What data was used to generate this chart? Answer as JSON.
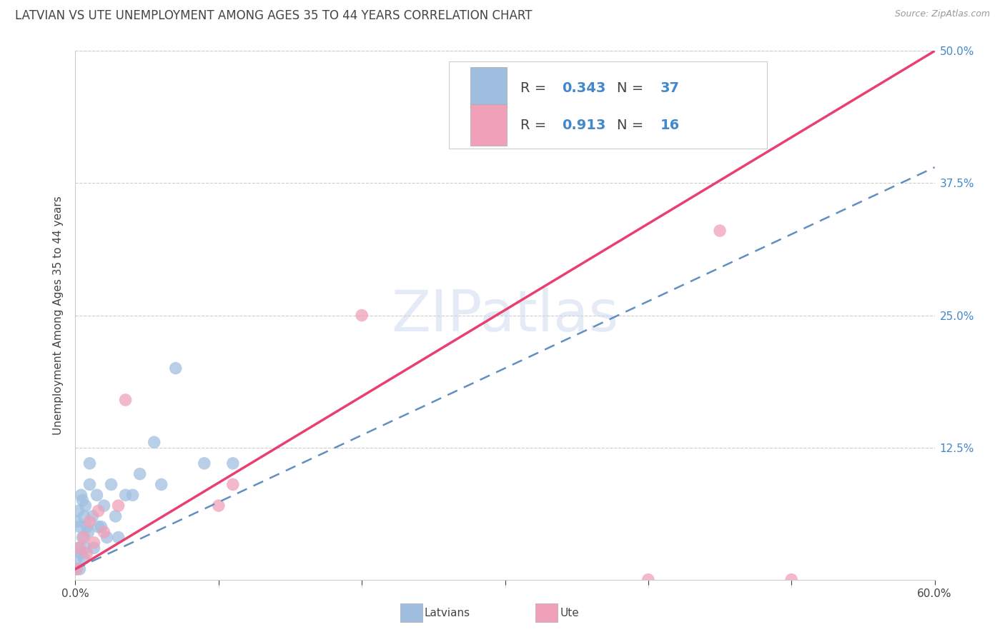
{
  "title": "LATVIAN VS UTE UNEMPLOYMENT AMONG AGES 35 TO 44 YEARS CORRELATION CHART",
  "source": "Source: ZipAtlas.com",
  "ylabel": "Unemployment Among Ages 35 to 44 years",
  "xmin": 0.0,
  "xmax": 0.6,
  "ymin": 0.0,
  "ymax": 0.5,
  "watermark": "ZIPatlas",
  "latvian_color": "#a0bfe0",
  "ute_color": "#f0a0b8",
  "latvian_line_color": "#6090c0",
  "ute_line_color": "#e84070",
  "latvian_R": 0.343,
  "latvian_N": 37,
  "ute_R": 0.913,
  "ute_N": 16,
  "blue_text_color": "#4488cc",
  "dark_text_color": "#444444",
  "grid_color": "#cccccc",
  "background_color": "#ffffff",
  "title_fontsize": 12,
  "label_fontsize": 11,
  "tick_fontsize": 11,
  "legend_fontsize": 14,
  "latvian_scatter_x": [
    0.0,
    0.001,
    0.001,
    0.002,
    0.002,
    0.003,
    0.003,
    0.004,
    0.004,
    0.005,
    0.005,
    0.006,
    0.006,
    0.007,
    0.007,
    0.008,
    0.009,
    0.01,
    0.01,
    0.012,
    0.013,
    0.015,
    0.016,
    0.018,
    0.02,
    0.022,
    0.025,
    0.028,
    0.03,
    0.035,
    0.04,
    0.045,
    0.055,
    0.06,
    0.07,
    0.09,
    0.11
  ],
  "latvian_scatter_y": [
    0.01,
    0.02,
    0.055,
    0.03,
    0.065,
    0.01,
    0.05,
    0.025,
    0.08,
    0.04,
    0.075,
    0.02,
    0.06,
    0.03,
    0.07,
    0.05,
    0.045,
    0.09,
    0.11,
    0.06,
    0.03,
    0.08,
    0.05,
    0.05,
    0.07,
    0.04,
    0.09,
    0.06,
    0.04,
    0.08,
    0.08,
    0.1,
    0.13,
    0.09,
    0.2,
    0.11,
    0.11
  ],
  "ute_scatter_x": [
    0.001,
    0.003,
    0.006,
    0.008,
    0.01,
    0.013,
    0.016,
    0.02,
    0.03,
    0.035,
    0.1,
    0.11,
    0.2,
    0.4,
    0.45,
    0.5
  ],
  "ute_scatter_y": [
    0.01,
    0.03,
    0.04,
    0.025,
    0.055,
    0.035,
    0.065,
    0.045,
    0.07,
    0.17,
    0.07,
    0.09,
    0.25,
    0.0,
    0.33,
    0.0
  ],
  "ute_line_start_x": 0.0,
  "ute_line_start_y": 0.01,
  "ute_line_end_x": 0.6,
  "ute_line_end_y": 0.5,
  "latvian_line_start_x": 0.0,
  "latvian_line_start_y": 0.01,
  "latvian_line_end_x": 0.6,
  "latvian_line_end_y": 0.39
}
